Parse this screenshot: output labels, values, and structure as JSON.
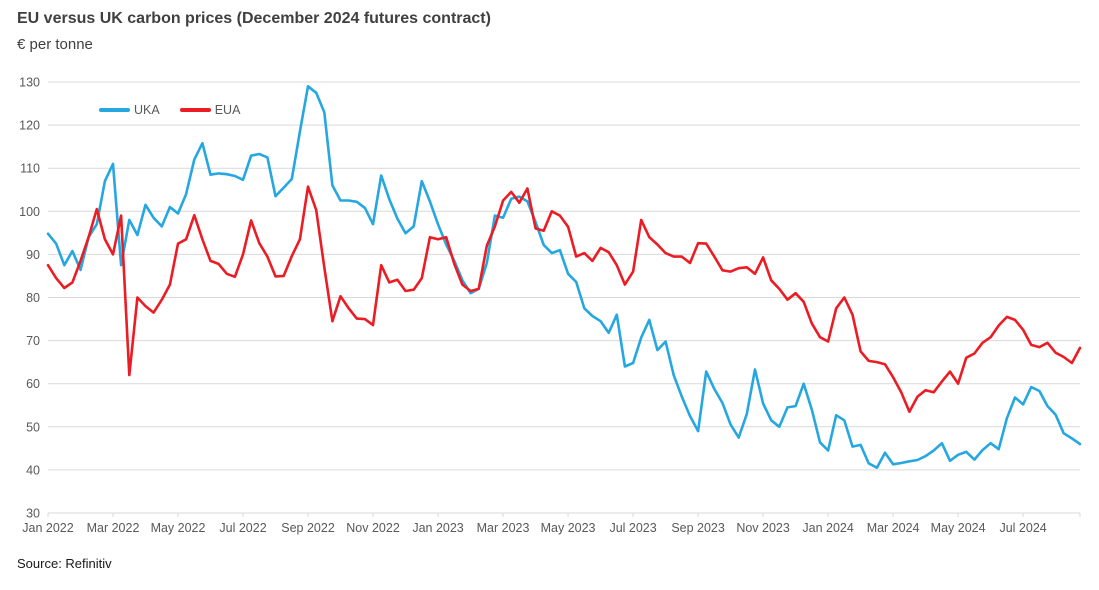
{
  "header": {
    "title": "EU versus UK carbon prices (December 2024 futures contract)",
    "subtitle": "€ per tonne"
  },
  "source": {
    "label": "Source: Refinitiv"
  },
  "palette": {
    "uka_blue": "#26a7e0",
    "eua_red": "#eb1c24",
    "gridline": "#d9d9d9",
    "axis_text": "#595959",
    "title_text": "#404040"
  },
  "chart_data": {
    "type": "line",
    "title": "EU versus UK carbon prices (December 2024 futures contract)",
    "ylabel": "€ per tonne",
    "grid": "horizontal",
    "legend_position": "top-left-inside",
    "ylim": [
      30,
      130
    ],
    "yticks": [
      30,
      40,
      50,
      60,
      70,
      80,
      90,
      100,
      110,
      120,
      130
    ],
    "x_unit": "months since Jan 2022",
    "x_step_months": 0.25,
    "x_span_months": 31.75,
    "xticks": [
      {
        "label": "Jan 2022",
        "month": 0
      },
      {
        "label": "Mar 2022",
        "month": 2
      },
      {
        "label": "May 2022",
        "month": 4
      },
      {
        "label": "Jul 2022",
        "month": 6
      },
      {
        "label": "Sep 2022",
        "month": 8
      },
      {
        "label": "Nov 2022",
        "month": 10
      },
      {
        "label": "Jan 2023",
        "month": 12
      },
      {
        "label": "Mar 2023",
        "month": 14
      },
      {
        "label": "May 2023",
        "month": 16
      },
      {
        "label": "Jul 2023",
        "month": 18
      },
      {
        "label": "Sep 2023",
        "month": 20
      },
      {
        "label": "Nov 2023",
        "month": 22
      },
      {
        "label": "Jan 2024",
        "month": 24
      },
      {
        "label": "Mar 2024",
        "month": 26
      },
      {
        "label": "May 2024",
        "month": 28
      },
      {
        "label": "Jul 2024",
        "month": 30
      }
    ],
    "series": [
      {
        "name": "UKA",
        "color": "#26a7e0",
        "values": [
          94.8,
          92.5,
          87.5,
          90.8,
          86.4,
          94,
          97,
          107,
          111,
          87.5,
          98,
          94.5,
          101.5,
          98.5,
          96.5,
          101,
          99.5,
          104,
          112,
          115.8,
          108.5,
          108.8,
          108.6,
          108.2,
          107.3,
          112.9,
          113.3,
          112.5,
          103.5,
          105.5,
          107.5,
          118.5,
          129,
          127.5,
          123,
          106,
          102.5,
          102.5,
          102.2,
          100.8,
          97,
          108.3,
          102.8,
          98.3,
          94.9,
          96.5,
          107,
          102.3,
          97,
          92.3,
          88.5,
          84,
          81,
          82,
          88,
          99,
          98.5,
          102.9,
          103.4,
          102.3,
          97.5,
          92.2,
          90.3,
          91,
          85.5,
          83.6,
          77.5,
          75.7,
          74.5,
          71.8,
          76,
          64,
          64.8,
          70.7,
          74.8,
          67.8,
          69.8,
          62,
          57,
          52.5,
          49,
          62.8,
          58.8,
          55.5,
          50.5,
          47.5,
          53,
          63.3,
          55.4,
          51.5,
          50,
          54.5,
          54.8,
          60,
          54,
          46.4,
          44.5,
          52.7,
          51.5,
          45.4,
          45.8,
          41.5,
          40.5,
          44,
          41.3,
          41.6,
          42,
          42.3,
          43.2,
          44.5,
          46.2,
          42.1,
          43.5,
          44.2,
          42.4,
          44.6,
          46.2,
          44.8,
          52,
          56.8,
          55.2,
          59.2,
          58.3,
          54.8,
          52.8,
          48.5,
          47.3,
          46
        ]
      },
      {
        "name": "EUA",
        "color": "#eb1c24",
        "values": [
          87.5,
          84.5,
          82.2,
          83.5,
          88.5,
          94,
          100.5,
          93.5,
          90,
          99,
          62,
          80,
          78,
          76.5,
          79.5,
          83,
          92.5,
          93.5,
          99.1,
          93.5,
          88.5,
          87.8,
          85.5,
          84.8,
          90,
          97.9,
          92.6,
          89.5,
          84.9,
          85,
          89.6,
          93.5,
          105.7,
          100.3,
          87,
          74.5,
          80.3,
          77.5,
          75.1,
          75,
          73.6,
          87.5,
          83.5,
          84.1,
          81.5,
          81.8,
          84.5,
          94,
          93.5,
          94,
          87.8,
          83,
          81.5,
          82,
          92,
          96.5,
          102.5,
          104.5,
          102,
          105.3,
          96,
          95.5,
          100,
          99,
          96.4,
          89.5,
          90.3,
          88.5,
          91.5,
          90.5,
          87.5,
          83,
          86,
          98,
          94,
          92.3,
          90.3,
          89.5,
          89.5,
          88,
          92.6,
          92.5,
          89.5,
          86.3,
          86,
          86.8,
          87,
          85.5,
          89.3,
          84,
          82,
          79.5,
          81,
          79,
          74,
          70.8,
          69.8,
          77.5,
          80,
          76,
          67.5,
          65.3,
          65,
          64.5,
          61.5,
          58,
          53.5,
          57,
          58.5,
          58,
          60.5,
          62.8,
          60,
          66,
          67,
          69.5,
          70.8,
          73.5,
          75.5,
          74.8,
          72.5,
          69,
          68.5,
          69.5,
          67.2,
          66.2,
          64.8,
          68.3
        ]
      }
    ]
  }
}
